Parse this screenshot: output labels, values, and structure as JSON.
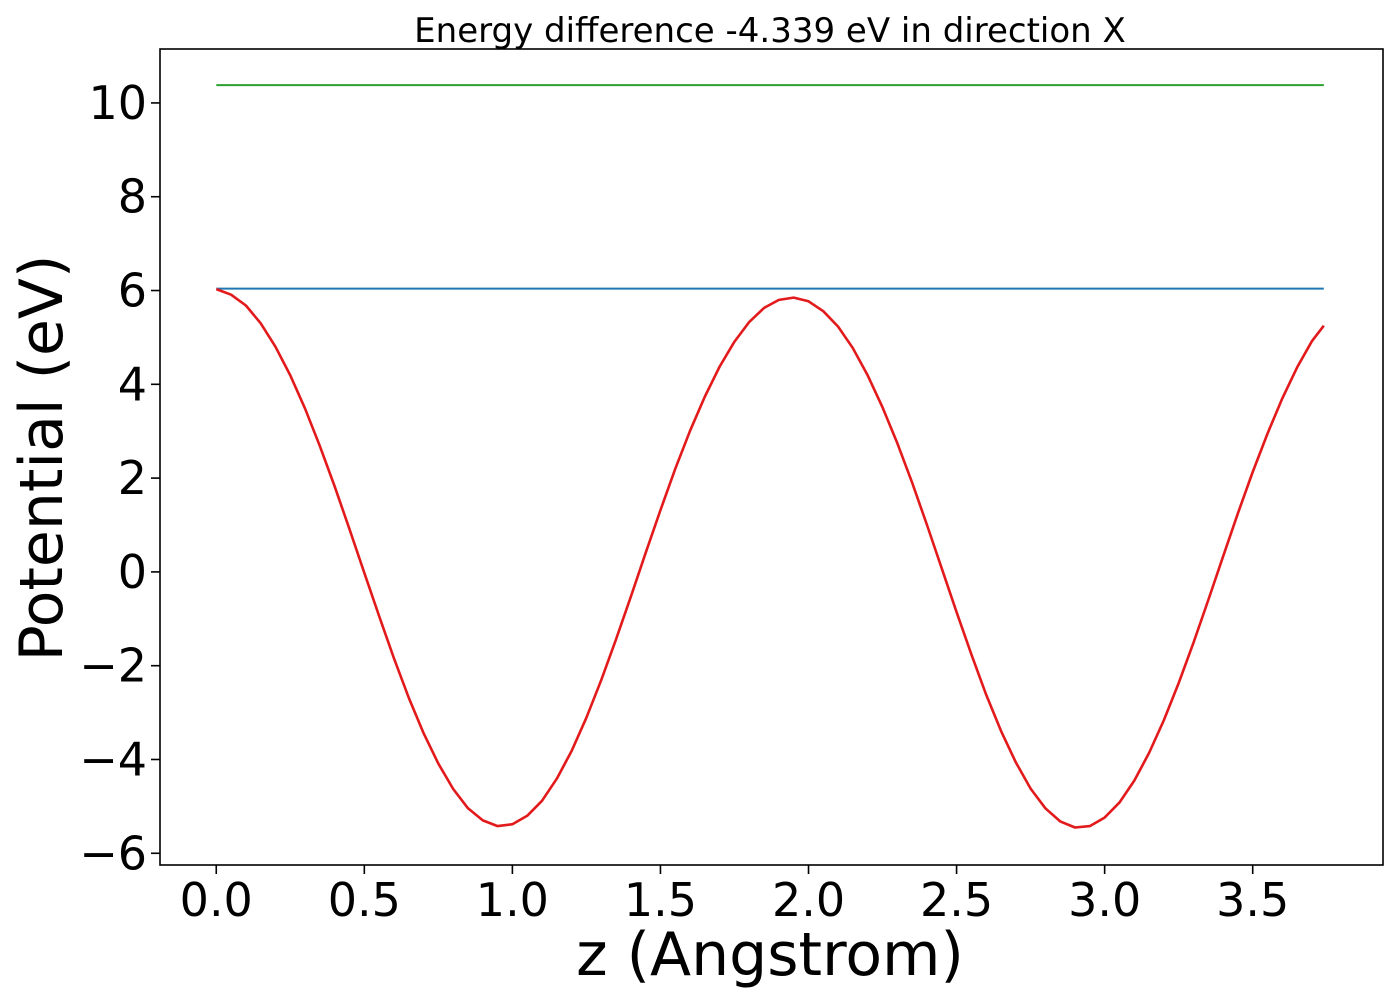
{
  "chart_data": {
    "type": "line",
    "title": "Energy difference -4.339 eV in direction X",
    "xlabel": "z (Angstrom)",
    "ylabel": "Potential (eV)",
    "xlim": [
      -0.19,
      3.94
    ],
    "ylim": [
      -6.25,
      11.15
    ],
    "xticks": [
      0.0,
      0.5,
      1.0,
      1.5,
      2.0,
      2.5,
      3.0,
      3.5
    ],
    "xtick_labels": [
      "0.0",
      "0.5",
      "1.0",
      "1.5",
      "2.0",
      "2.5",
      "3.0",
      "3.5"
    ],
    "yticks": [
      -6,
      -4,
      -2,
      0,
      2,
      4,
      6,
      8,
      10
    ],
    "ytick_labels": [
      "−6",
      "−4",
      "−2",
      "0",
      "2",
      "4",
      "6",
      "8",
      "10"
    ],
    "grid": false,
    "series": [
      {
        "color": "#2ca02c",
        "x": [
          0.0,
          3.74
        ],
        "y": [
          10.38,
          10.38
        ]
      },
      {
        "color": "#1f77b4",
        "x": [
          0.0,
          3.74
        ],
        "y": [
          6.04,
          6.04
        ]
      },
      {
        "color": "#e31a1c",
        "x": [
          0.0,
          0.05,
          0.1,
          0.15,
          0.2,
          0.25,
          0.3,
          0.35,
          0.4,
          0.45,
          0.5,
          0.55,
          0.6,
          0.65,
          0.7,
          0.75,
          0.8,
          0.85,
          0.9,
          0.95,
          1.0,
          1.05,
          1.1,
          1.15,
          1.2,
          1.25,
          1.3,
          1.35,
          1.4,
          1.45,
          1.5,
          1.55,
          1.6,
          1.65,
          1.7,
          1.75,
          1.8,
          1.85,
          1.9,
          1.95,
          2.0,
          2.05,
          2.1,
          2.15,
          2.2,
          2.25,
          2.3,
          2.35,
          2.4,
          2.45,
          2.5,
          2.55,
          2.6,
          2.65,
          2.7,
          2.75,
          2.8,
          2.85,
          2.9,
          2.95,
          3.0,
          3.05,
          3.1,
          3.15,
          3.2,
          3.25,
          3.3,
          3.35,
          3.4,
          3.45,
          3.5,
          3.55,
          3.6,
          3.65,
          3.7,
          3.74
        ],
        "y": [
          6.03,
          5.91,
          5.68,
          5.3,
          4.8,
          4.19,
          3.48,
          2.68,
          1.82,
          0.91,
          -0.02,
          -0.94,
          -1.84,
          -2.68,
          -3.44,
          -4.09,
          -4.63,
          -5.04,
          -5.3,
          -5.42,
          -5.38,
          -5.2,
          -4.88,
          -4.41,
          -3.82,
          -3.11,
          -2.31,
          -1.44,
          -0.53,
          0.4,
          1.32,
          2.2,
          3.01,
          3.74,
          4.38,
          4.91,
          5.33,
          5.63,
          5.8,
          5.85,
          5.77,
          5.56,
          5.23,
          4.77,
          4.19,
          3.51,
          2.74,
          1.9,
          1.0,
          0.07,
          -0.86,
          -1.76,
          -2.62,
          -3.39,
          -4.06,
          -4.62,
          -5.04,
          -5.32,
          -5.45,
          -5.42,
          -5.24,
          -4.92,
          -4.45,
          -3.86,
          -3.16,
          -2.37,
          -1.51,
          -0.6,
          0.33,
          1.25,
          2.13,
          2.95,
          3.7,
          4.36,
          4.92,
          5.25
        ]
      }
    ]
  }
}
